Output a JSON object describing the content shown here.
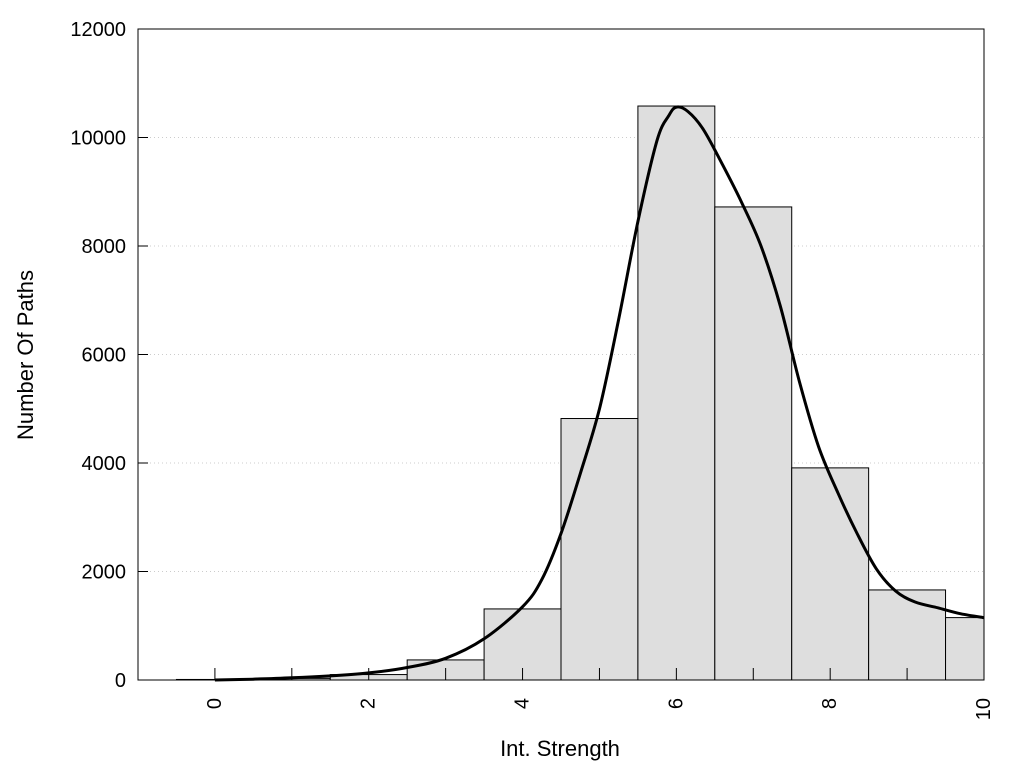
{
  "chart_data": {
    "type": "bar",
    "title": "",
    "xlabel": "Int. Strength",
    "ylabel": "Number Of Paths",
    "xlim": [
      -1,
      10
    ],
    "ylim": [
      0,
      12000
    ],
    "xticks": [
      0,
      2,
      4,
      6,
      8,
      10
    ],
    "yticks": [
      0,
      2000,
      4000,
      6000,
      8000,
      10000,
      12000
    ],
    "grid": "horizontal-dotted",
    "bin_width": 1,
    "categories": [
      0,
      1,
      2,
      3,
      4,
      5,
      6,
      7,
      8,
      9,
      10
    ],
    "values": [
      10,
      30,
      100,
      370,
      1310,
      4820,
      10580,
      8720,
      3910,
      1660,
      1150
    ],
    "curve": {
      "x": [
        0,
        0.5,
        1,
        1.5,
        2,
        2.5,
        3,
        3.5,
        4,
        4.25,
        4.5,
        4.75,
        5,
        5.25,
        5.5,
        5.75,
        5.9,
        6,
        6.15,
        6.35,
        6.6,
        6.85,
        7.1,
        7.35,
        7.6,
        7.85,
        8.1,
        8.35,
        8.6,
        8.85,
        9.1,
        9.4,
        9.7,
        10
      ],
      "y": [
        0,
        15,
        40,
        75,
        130,
        230,
        400,
        760,
        1350,
        1850,
        2700,
        3800,
        5000,
        6650,
        8450,
        9950,
        10400,
        10560,
        10480,
        10150,
        9500,
        8800,
        8000,
        6900,
        5500,
        4300,
        3450,
        2700,
        2050,
        1640,
        1440,
        1330,
        1220,
        1150
      ]
    },
    "colors": {
      "bar_fill": "#dedede",
      "bar_stroke": "#000000",
      "curve": "#000000",
      "grid": "#cccccc"
    }
  }
}
